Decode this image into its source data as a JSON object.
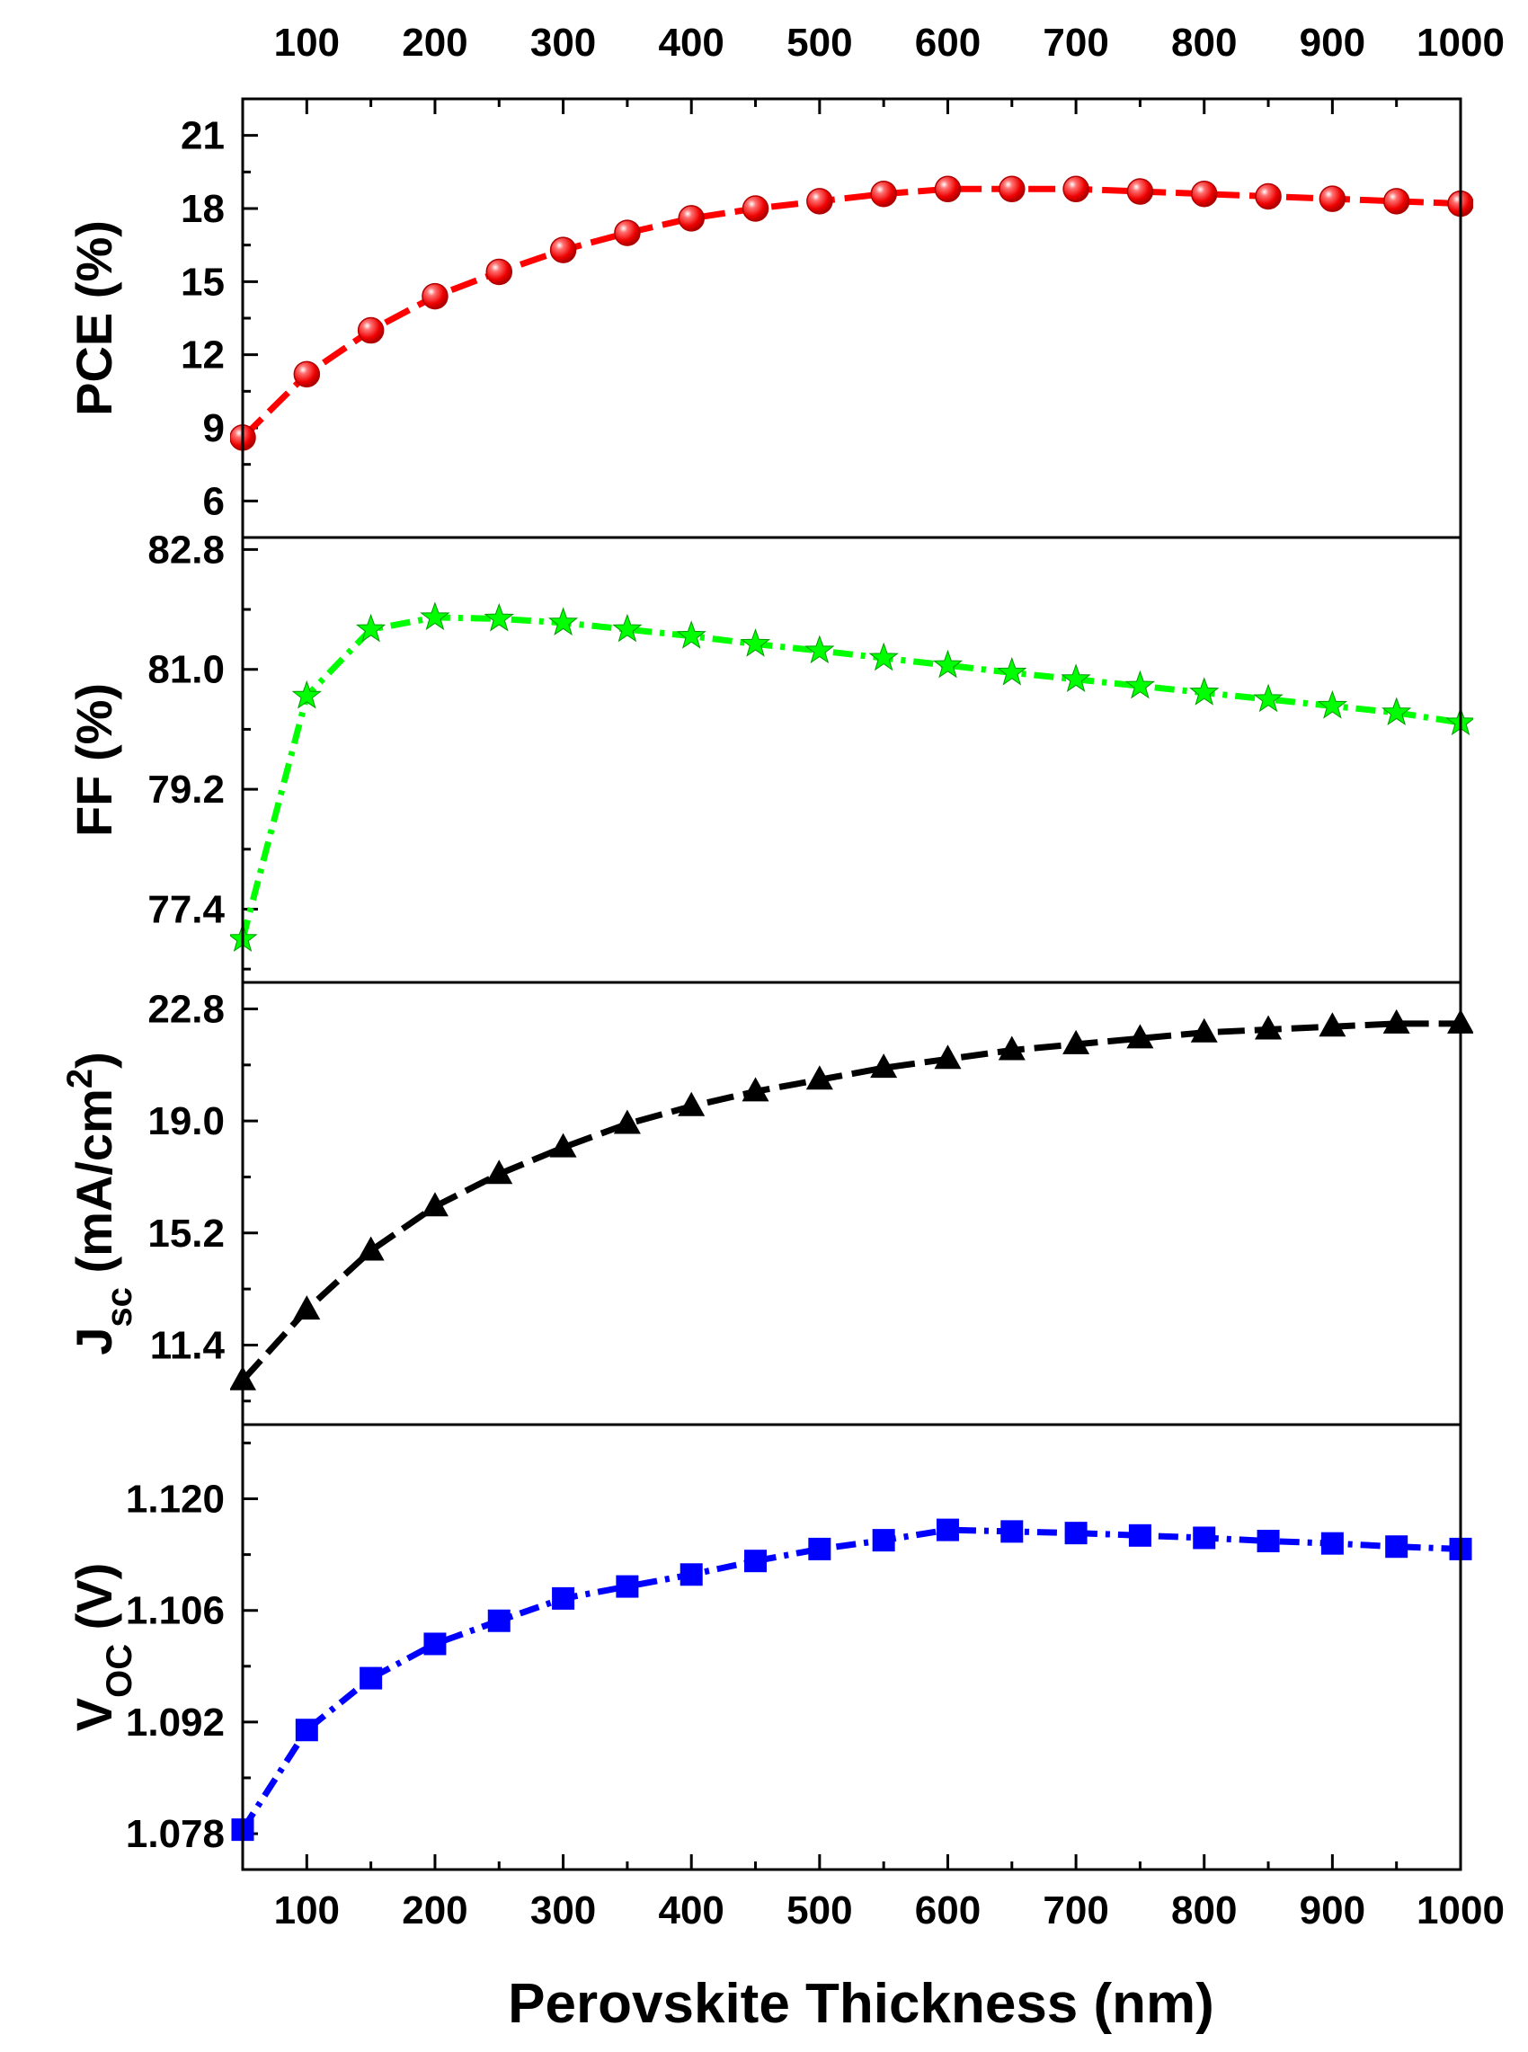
{
  "figure": {
    "x_axis_label": "Perovskite Thickness (nm)",
    "x_ticks": [
      100,
      200,
      300,
      400,
      500,
      600,
      700,
      800,
      900,
      1000
    ],
    "xlim": [
      50,
      1000
    ]
  },
  "chart_data": [
    {
      "type": "line",
      "id": "pce",
      "ylabel": "PCE (%)",
      "ylabel_parts": [
        {
          "text": "PCE (%)",
          "shift": "normal"
        }
      ],
      "xlabel": "Perovskite Thickness (nm)",
      "ylim": [
        4.5,
        22.5
      ],
      "yticks": [
        6,
        9,
        12,
        15,
        18,
        21
      ],
      "ytick_labels": [
        "6",
        "9",
        "12",
        "15",
        "18",
        "21"
      ],
      "color": "#ff0000",
      "marker": "sphere",
      "series": [
        {
          "x": [
            50,
            100,
            150,
            200,
            250,
            300,
            350,
            400,
            450,
            500,
            550,
            600,
            650,
            700,
            750,
            800,
            850,
            900,
            950,
            1000
          ],
          "y": [
            8.6,
            11.2,
            13.0,
            14.4,
            15.4,
            16.3,
            17.0,
            17.6,
            18.0,
            18.3,
            18.6,
            18.8,
            18.8,
            18.8,
            18.7,
            18.6,
            18.5,
            18.4,
            18.3,
            18.2
          ]
        }
      ]
    },
    {
      "type": "line",
      "id": "ff",
      "ylabel": "FF (%)",
      "ylabel_parts": [
        {
          "text": "FF (%)",
          "shift": "normal"
        }
      ],
      "xlabel": "Perovskite Thickness (nm)",
      "ylim": [
        76.3,
        82.98
      ],
      "yticks": [
        77.4,
        79.2,
        81.0,
        82.8
      ],
      "ytick_labels": [
        "77.4",
        "79.2",
        "81.0",
        "82.8"
      ],
      "color": "#00ff00",
      "marker": "star",
      "series": [
        {
          "x": [
            50,
            100,
            150,
            200,
            250,
            300,
            350,
            400,
            450,
            500,
            550,
            600,
            650,
            700,
            750,
            800,
            850,
            900,
            950,
            1000
          ],
          "y": [
            76.95,
            80.6,
            81.6,
            81.78,
            81.76,
            81.7,
            81.6,
            81.5,
            81.38,
            81.28,
            81.17,
            81.06,
            80.95,
            80.85,
            80.75,
            80.65,
            80.55,
            80.45,
            80.35,
            80.2
          ]
        }
      ]
    },
    {
      "type": "line",
      "id": "jsc",
      "ylabel": "Jsc (mA/cm2)",
      "ylabel_parts": [
        {
          "text": "J",
          "shift": "normal"
        },
        {
          "text": "sc",
          "shift": "sub"
        },
        {
          "text": " (mA/cm",
          "shift": "normal"
        },
        {
          "text": "2",
          "shift": "super"
        },
        {
          "text": ")",
          "shift": "normal"
        }
      ],
      "xlabel": "Perovskite Thickness (nm)",
      "ylim": [
        8.7,
        23.7
      ],
      "yticks": [
        11.4,
        15.2,
        19.0,
        22.8
      ],
      "ytick_labels": [
        "11.4",
        "15.2",
        "19.0",
        "22.8"
      ],
      "color": "#000000",
      "marker": "triangle",
      "series": [
        {
          "x": [
            50,
            100,
            150,
            200,
            250,
            300,
            350,
            400,
            450,
            500,
            550,
            600,
            650,
            700,
            750,
            800,
            850,
            900,
            950,
            1000
          ],
          "y": [
            10.2,
            12.6,
            14.6,
            16.1,
            17.2,
            18.1,
            18.9,
            19.5,
            20.0,
            20.4,
            20.8,
            21.1,
            21.4,
            21.6,
            21.8,
            22.0,
            22.1,
            22.2,
            22.3,
            22.3
          ]
        }
      ]
    },
    {
      "type": "line",
      "id": "voc",
      "ylabel": "VOC (V)",
      "ylabel_parts": [
        {
          "text": "V",
          "shift": "normal"
        },
        {
          "text": "OC",
          "shift": "sub"
        },
        {
          "text": " (V)",
          "shift": "normal"
        }
      ],
      "xlabel": "Perovskite Thickness (nm)",
      "ylim": [
        1.0735,
        1.1293
      ],
      "yticks": [
        1.078,
        1.092,
        1.106,
        1.12
      ],
      "ytick_labels": [
        "1.078",
        "1.092",
        "1.106",
        "1.120"
      ],
      "color": "#0000ff",
      "marker": "square",
      "series": [
        {
          "x": [
            50,
            100,
            150,
            200,
            250,
            300,
            350,
            400,
            450,
            500,
            550,
            600,
            650,
            700,
            750,
            800,
            850,
            900,
            950,
            1000
          ],
          "y": [
            1.0785,
            1.091,
            1.0975,
            1.1018,
            1.1047,
            1.1075,
            1.109,
            1.1105,
            1.1122,
            1.1137,
            1.1148,
            1.1161,
            1.1159,
            1.1157,
            1.1154,
            1.1151,
            1.1147,
            1.1144,
            1.114,
            1.1137
          ]
        }
      ]
    }
  ]
}
